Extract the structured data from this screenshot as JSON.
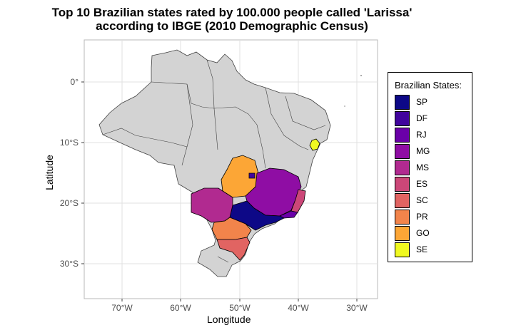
{
  "title_line1": "Top 10 Brazilian states rated by 100.000 people called 'Larissa'",
  "title_line2": "according to IBGE (2010 Demographic Census)",
  "axes": {
    "x_label": "Longitude",
    "y_label": "Latitude",
    "x_ticks": [
      "70°W",
      "60°W",
      "50°W",
      "40°W",
      "30°W"
    ],
    "y_ticks": [
      "0°",
      "10°S",
      "20°S",
      "30°S"
    ]
  },
  "legend": {
    "title": "Brazilian States:",
    "items": [
      {
        "label": "SP",
        "color": "#0d0887"
      },
      {
        "label": "DF",
        "color": "#41049d"
      },
      {
        "label": "RJ",
        "color": "#6a00a8"
      },
      {
        "label": "MG",
        "color": "#8f0da4"
      },
      {
        "label": "MS",
        "color": "#b12a90"
      },
      {
        "label": "ES",
        "color": "#cc4778"
      },
      {
        "label": "SC",
        "color": "#e16462"
      },
      {
        "label": "PR",
        "color": "#f2844b"
      },
      {
        "label": "GO",
        "color": "#fca636"
      },
      {
        "label": "SE",
        "color": "#f0f921"
      }
    ]
  },
  "colors": {
    "other_states": "#d3d3d3",
    "grid": "#e0e0e0",
    "panel_border": "#b8b8b8"
  }
}
